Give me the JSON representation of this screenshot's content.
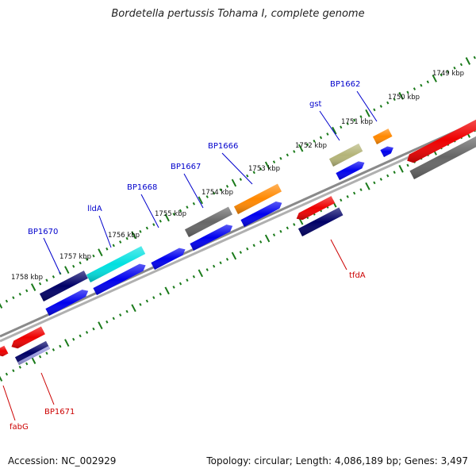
{
  "title": "Bordetella pertussis Tohama I, complete genome",
  "footer": {
    "accession": "Accession: NC_002929",
    "summary": "Topology: circular; Length: 4,086,189 bp; Genes: 3,497"
  },
  "colors": {
    "backbone": "#8a8a8a",
    "ticks": "#1a7a1a",
    "label_forward": "#0000cc",
    "label_reverse": "#cc0000"
  },
  "map": {
    "kbp_labels": [
      "1749 kbp",
      "1750 kbp",
      "1751 kbp",
      "1752 kbp",
      "1753 kbp",
      "1754 kbp",
      "1755 kbp",
      "1756 kbp",
      "1757 kbp",
      "1758 kbp"
    ],
    "features": [
      {
        "label": "BP1670",
        "strand": "forward",
        "color": "#000066"
      },
      {
        "label": "lldA",
        "strand": "forward",
        "color": "#00e0e0"
      },
      {
        "label": "BP1668",
        "strand": "forward",
        "color": "#0000ee"
      },
      {
        "label": "BP1667",
        "strand": "forward",
        "color": "#666666"
      },
      {
        "label": "BP1666",
        "strand": "forward",
        "color": "#ff8800"
      },
      {
        "label": "gst",
        "strand": "forward",
        "color": "#b4b478"
      },
      {
        "label": "BP1662",
        "strand": "forward",
        "color": "#ff8800"
      },
      {
        "label": "tfdA",
        "strand": "reverse",
        "color": "#ee0000"
      },
      {
        "label": "BP1671",
        "strand": "reverse",
        "color": "#ee0000"
      },
      {
        "label": "fabG",
        "strand": "reverse",
        "color": "#ee0000"
      }
    ]
  }
}
